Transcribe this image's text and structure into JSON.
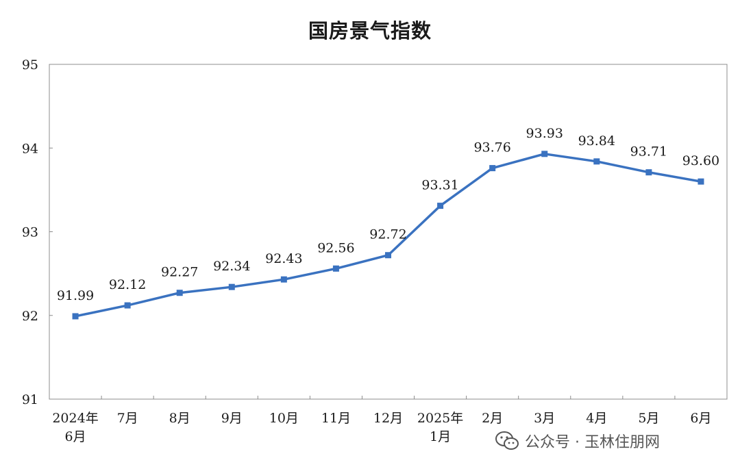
{
  "chart_data": {
    "type": "line",
    "title": "国房景气指数",
    "xlabel": "",
    "ylabel": "",
    "categories": [
      [
        "2024年",
        "6月"
      ],
      [
        "7月"
      ],
      [
        "8月"
      ],
      [
        "9月"
      ],
      [
        "10月"
      ],
      [
        "11月"
      ],
      [
        "12月"
      ],
      [
        "2025年",
        "1月"
      ],
      [
        "2月"
      ],
      [
        "3月"
      ],
      [
        "4月"
      ],
      [
        "5月"
      ],
      [
        "6月"
      ]
    ],
    "series": [
      {
        "values": [
          91.99,
          92.12,
          92.27,
          92.34,
          92.43,
          92.56,
          92.72,
          93.31,
          93.76,
          93.93,
          93.84,
          93.71,
          93.6
        ],
        "labels": [
          "91.99",
          "92.12",
          "92.27",
          "92.34",
          "92.43",
          "92.56",
          "92.72",
          "93.31",
          "93.76",
          "93.93",
          "93.84",
          "93.71",
          "93.60"
        ],
        "color": "#3a72c0",
        "marker": "square"
      }
    ],
    "ylim": [
      91,
      95
    ],
    "yticks": [
      "91",
      "92",
      "93",
      "94",
      "95"
    ],
    "grid": false,
    "legend": "none"
  },
  "watermark": {
    "icon": "wechat-icon",
    "text": "公众号 · 玉林住朋网"
  }
}
